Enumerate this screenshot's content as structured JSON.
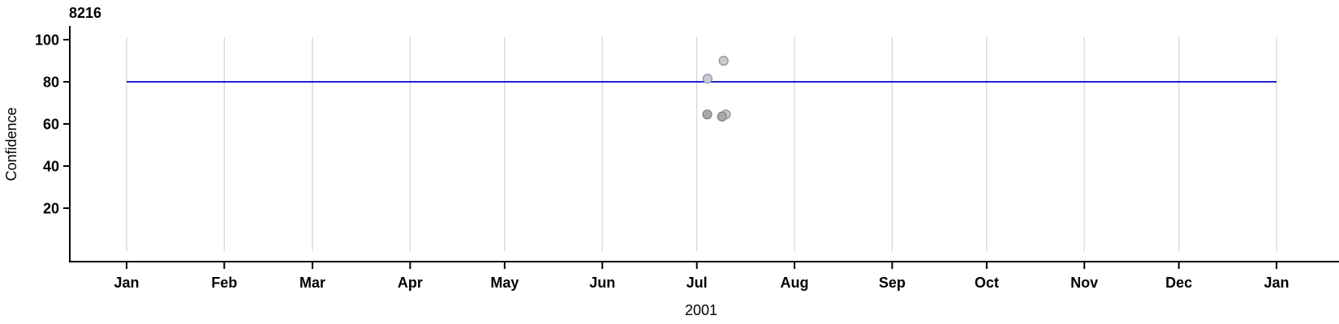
{
  "page": {
    "background": "#ffffff"
  },
  "chart_data": {
    "type": "scatter",
    "title": "8216",
    "ylabel": "Confidence",
    "xlabel": "2001",
    "x_axis": {
      "unit": "months of year 2001 (Jan 2001 - Jan 2002)",
      "tick_labels": [
        "Jan",
        "Feb",
        "Mar",
        "Apr",
        "May",
        "Jun",
        "Jul",
        "Aug",
        "Sep",
        "Oct",
        "Nov",
        "Dec",
        "Jan"
      ],
      "tick_day_offsets": [
        0,
        31,
        59,
        90,
        120,
        151,
        181,
        212,
        243,
        273,
        304,
        334,
        365
      ],
      "range_days": [
        0,
        365
      ],
      "grid": true
    },
    "y_axis": {
      "tick_labels": [
        "100",
        "80",
        "60",
        "40",
        "20"
      ],
      "tick_values": [
        100,
        80,
        60,
        40,
        20
      ],
      "range": [
        0,
        105
      ],
      "grid": false
    },
    "reference_line": {
      "value": 80,
      "color": "#0000c8",
      "span_days": [
        0,
        365
      ]
    },
    "points": [
      {
        "date_est": "2001-07-09",
        "day_of_year": 189.5,
        "value": 90.0,
        "shade": "light"
      },
      {
        "date_est": "2001-07-04",
        "day_of_year": 184.4,
        "value": 81.5,
        "shade": "light_blue_tint"
      },
      {
        "date_est": "2001-07-04",
        "day_of_year": 184.3,
        "value": 64.5,
        "shade": "dark"
      },
      {
        "date_est": "2001-07-10",
        "day_of_year": 190.2,
        "value": 64.5,
        "shade": "light"
      },
      {
        "date_est": "2001-07-09",
        "day_of_year": 189.0,
        "value": 63.5,
        "shade": "dark"
      }
    ],
    "point_styles": {
      "light": {
        "fill": "#c9c9c9",
        "stroke": "#8f8f8f"
      },
      "light_blue_tint": {
        "fill": "#c8c9d6",
        "stroke": "#8f91a6"
      },
      "dark": {
        "fill": "#a8a8ab",
        "stroke": "#7e7e82"
      }
    },
    "colors": {
      "gridline": "#d6d6d6",
      "axis": "#000000",
      "text": "#000000",
      "reference_line": "#0000c8"
    },
    "legend": null,
    "grid_on": true
  }
}
